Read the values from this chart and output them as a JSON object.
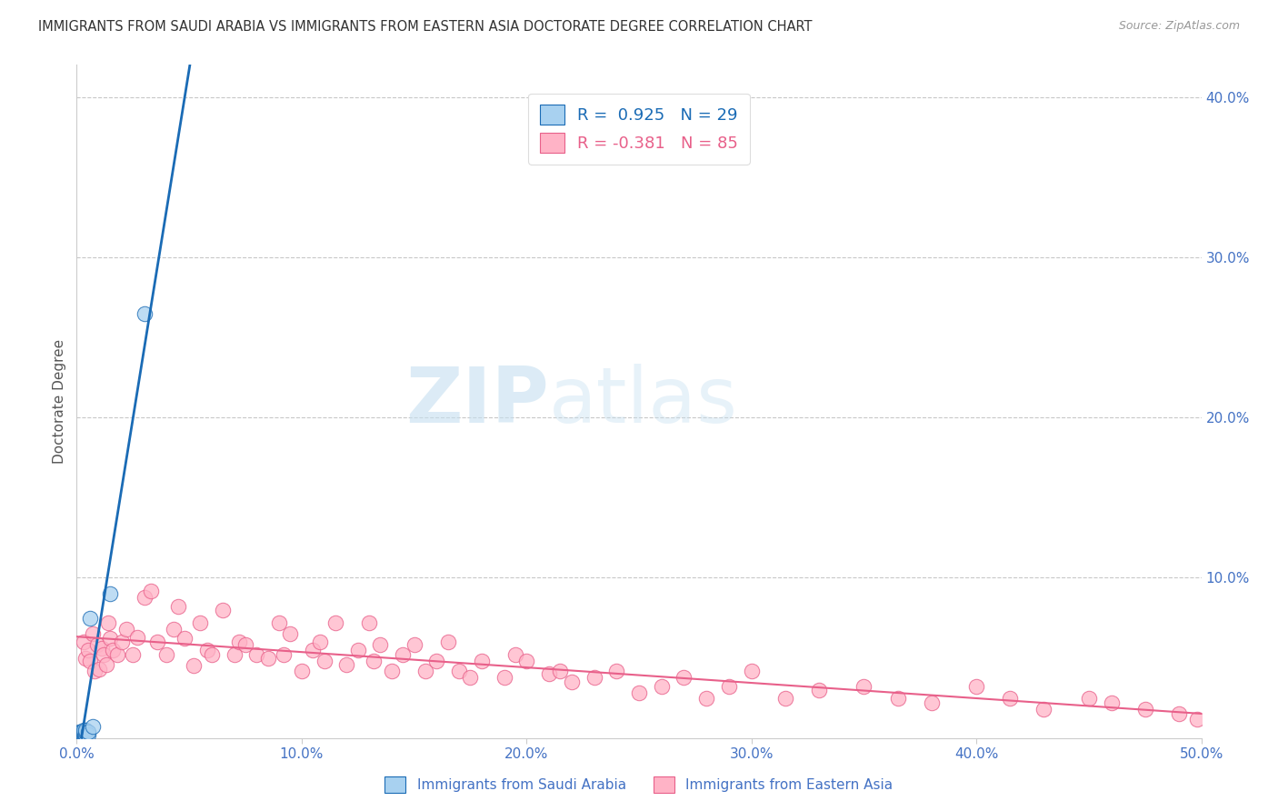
{
  "title": "IMMIGRANTS FROM SAUDI ARABIA VS IMMIGRANTS FROM EASTERN ASIA DOCTORATE DEGREE CORRELATION CHART",
  "source": "Source: ZipAtlas.com",
  "ylabel": "Doctorate Degree",
  "xlim": [
    0.0,
    0.5
  ],
  "ylim": [
    0.0,
    0.42
  ],
  "x_ticks": [
    0.0,
    0.1,
    0.2,
    0.3,
    0.4,
    0.5
  ],
  "x_tick_labels": [
    "0.0%",
    "10.0%",
    "20.0%",
    "30.0%",
    "40.0%",
    "50.0%"
  ],
  "y_ticks_right": [
    0.1,
    0.2,
    0.3,
    0.4
  ],
  "y_tick_labels_right": [
    "10.0%",
    "20.0%",
    "30.0%",
    "40.0%"
  ],
  "saudi_color": "#a8d1f0",
  "eastern_color": "#ffb3c6",
  "saudi_R": 0.925,
  "saudi_N": 29,
  "eastern_R": -0.381,
  "eastern_N": 85,
  "saudi_line_color": "#1a6bb5",
  "eastern_line_color": "#e8608a",
  "watermark_zip": "ZIP",
  "watermark_atlas": "atlas",
  "legend_label_saudi": "Immigrants from Saudi Arabia",
  "legend_label_eastern": "Immigrants from Eastern Asia",
  "saudi_x": [
    0.001,
    0.001,
    0.001,
    0.001,
    0.001,
    0.001,
    0.001,
    0.002,
    0.002,
    0.002,
    0.002,
    0.002,
    0.002,
    0.002,
    0.003,
    0.003,
    0.003,
    0.003,
    0.003,
    0.003,
    0.004,
    0.004,
    0.004,
    0.005,
    0.005,
    0.006,
    0.007,
    0.015,
    0.03
  ],
  "saudi_y": [
    0.0,
    0.001,
    0.001,
    0.002,
    0.002,
    0.003,
    0.004,
    0.001,
    0.001,
    0.002,
    0.002,
    0.003,
    0.003,
    0.004,
    0.001,
    0.002,
    0.003,
    0.003,
    0.004,
    0.005,
    0.002,
    0.004,
    0.005,
    0.002,
    0.004,
    0.075,
    0.007,
    0.09,
    0.265
  ],
  "eastern_x": [
    0.003,
    0.004,
    0.005,
    0.006,
    0.007,
    0.008,
    0.009,
    0.01,
    0.011,
    0.012,
    0.013,
    0.014,
    0.015,
    0.016,
    0.018,
    0.02,
    0.022,
    0.025,
    0.027,
    0.03,
    0.033,
    0.036,
    0.04,
    0.043,
    0.045,
    0.048,
    0.052,
    0.055,
    0.058,
    0.06,
    0.065,
    0.07,
    0.072,
    0.075,
    0.08,
    0.085,
    0.09,
    0.092,
    0.095,
    0.1,
    0.105,
    0.108,
    0.11,
    0.115,
    0.12,
    0.125,
    0.13,
    0.132,
    0.135,
    0.14,
    0.145,
    0.15,
    0.155,
    0.16,
    0.165,
    0.17,
    0.175,
    0.18,
    0.19,
    0.195,
    0.2,
    0.21,
    0.215,
    0.22,
    0.23,
    0.24,
    0.25,
    0.26,
    0.27,
    0.28,
    0.29,
    0.3,
    0.315,
    0.33,
    0.35,
    0.365,
    0.38,
    0.4,
    0.415,
    0.43,
    0.45,
    0.46,
    0.475,
    0.49,
    0.498
  ],
  "eastern_y": [
    0.06,
    0.05,
    0.055,
    0.048,
    0.065,
    0.042,
    0.058,
    0.043,
    0.056,
    0.052,
    0.046,
    0.072,
    0.062,
    0.055,
    0.052,
    0.06,
    0.068,
    0.052,
    0.063,
    0.088,
    0.092,
    0.06,
    0.052,
    0.068,
    0.082,
    0.062,
    0.045,
    0.072,
    0.055,
    0.052,
    0.08,
    0.052,
    0.06,
    0.058,
    0.052,
    0.05,
    0.072,
    0.052,
    0.065,
    0.042,
    0.055,
    0.06,
    0.048,
    0.072,
    0.046,
    0.055,
    0.072,
    0.048,
    0.058,
    0.042,
    0.052,
    0.058,
    0.042,
    0.048,
    0.06,
    0.042,
    0.038,
    0.048,
    0.038,
    0.052,
    0.048,
    0.04,
    0.042,
    0.035,
    0.038,
    0.042,
    0.028,
    0.032,
    0.038,
    0.025,
    0.032,
    0.042,
    0.025,
    0.03,
    0.032,
    0.025,
    0.022,
    0.032,
    0.025,
    0.018,
    0.025,
    0.022,
    0.018,
    0.015,
    0.012
  ]
}
